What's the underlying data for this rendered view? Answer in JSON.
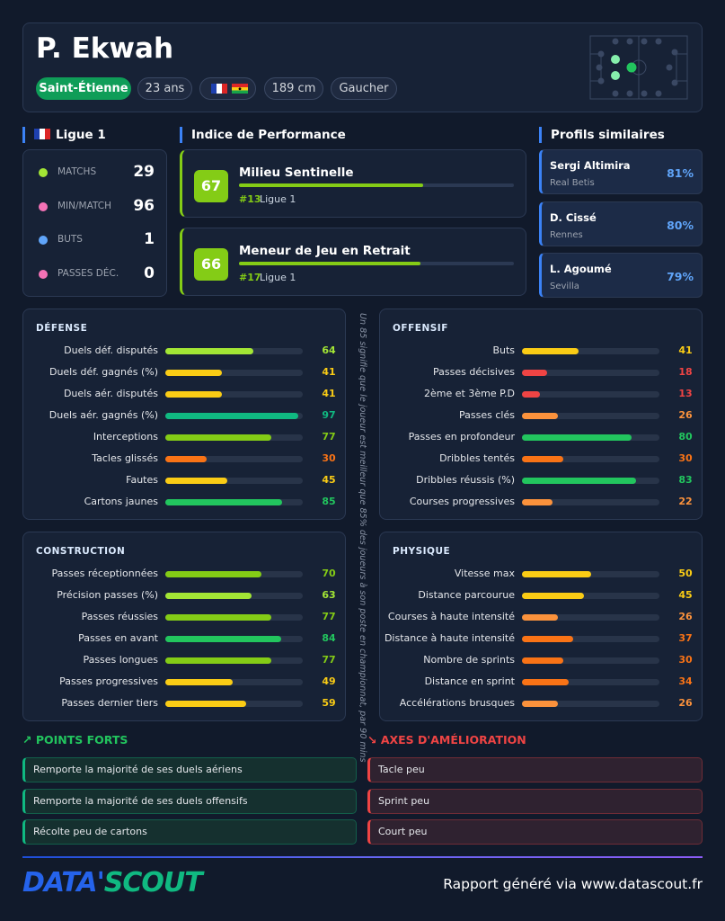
{
  "header": {
    "name": "P. Ekwah",
    "club": "Saint-Étienne",
    "age": "23 ans",
    "height": "189 cm",
    "foot": "Gaucher"
  },
  "league": {
    "name": "Ligue 1",
    "stats": [
      {
        "label": "MATCHS",
        "value": 29
      },
      {
        "label": "MIN/MATCH",
        "value": 96
      },
      {
        "label": "BUTS",
        "value": 1
      },
      {
        "label": "PASSES DÉC.",
        "value": 0
      }
    ]
  },
  "performance": {
    "title": "Indice de Performance",
    "items": [
      {
        "score": 67,
        "role": "Milieu Sentinelle",
        "rank": "#13",
        "league": "Ligue 1"
      },
      {
        "score": 66,
        "role": "Meneur de Jeu en Retrait",
        "rank": "#17",
        "league": "Ligue 1"
      }
    ]
  },
  "similar": {
    "title": "Profils similaires",
    "items": [
      {
        "name": "Sergi Altimira",
        "club": "Real Betis",
        "pct": "81%"
      },
      {
        "name": "D. Cissé",
        "club": "Rennes",
        "pct": "80%"
      },
      {
        "name": "L. Agoumé",
        "club": "Sevilla",
        "pct": "79%"
      }
    ]
  },
  "sections": [
    {
      "title": "DÉFENSE",
      "stats": [
        {
          "label": "Duels déf. disputés",
          "value": 64
        },
        {
          "label": "Duels déf. gagnés (%)",
          "value": 41
        },
        {
          "label": "Duels aér. disputés",
          "value": 41
        },
        {
          "label": "Duels aér. gagnés (%)",
          "value": 97
        },
        {
          "label": "Interceptions",
          "value": 77
        },
        {
          "label": "Tacles glissés",
          "value": 30
        },
        {
          "label": "Fautes",
          "value": 45
        },
        {
          "label": "Cartons jaunes",
          "value": 85
        }
      ]
    },
    {
      "title": "OFFENSIF",
      "stats": [
        {
          "label": "Buts",
          "value": 41
        },
        {
          "label": "Passes décisives",
          "value": 18
        },
        {
          "label": "2ème et 3ème P.D",
          "value": 13
        },
        {
          "label": "Passes clés",
          "value": 26
        },
        {
          "label": "Passes en profondeur",
          "value": 80
        },
        {
          "label": "Dribbles tentés",
          "value": 30
        },
        {
          "label": "Dribbles réussis (%)",
          "value": 83
        },
        {
          "label": "Courses progressives",
          "value": 22
        }
      ]
    },
    {
      "title": "CONSTRUCTION",
      "stats": [
        {
          "label": "Passes réceptionnées",
          "value": 70
        },
        {
          "label": "Précision passes (%)",
          "value": 63
        },
        {
          "label": "Passes réussies",
          "value": 77
        },
        {
          "label": "Passes en avant",
          "value": 84
        },
        {
          "label": "Passes longues",
          "value": 77
        },
        {
          "label": "Passes progressives",
          "value": 49
        },
        {
          "label": "Passes dernier tiers",
          "value": 59
        }
      ]
    },
    {
      "title": "PHYSIQUE",
      "stats": [
        {
          "label": "Vitesse max",
          "value": 50
        },
        {
          "label": "Distance parcourue",
          "value": 45
        },
        {
          "label": "Courses à haute intensité",
          "value": 26
        },
        {
          "label": "Distance à haute intensité",
          "value": 37
        },
        {
          "label": "Nombre de sprints",
          "value": 30
        },
        {
          "label": "Distance en sprint",
          "value": 34
        },
        {
          "label": "Accélérations brusques",
          "value": 26
        }
      ]
    }
  ],
  "note": "Un 85 signifie que le joueur est meilleur que 85% des joueurs à son poste en championnat, par 90 mins",
  "strengths": {
    "title": "POINTS FORTS",
    "items": [
      "Remporte la majorité de ses duels aériens",
      "Remporte la majorité de ses duels offensifs",
      "Récolte peu de cartons"
    ]
  },
  "improvements": {
    "title": "AXES D'AMÉLIORATION",
    "items": [
      "Tacle peu",
      "Sprint peu",
      "Court peu"
    ]
  },
  "footer": {
    "logo_a": "DATA'",
    "logo_b": "SCOUT",
    "text": "Rapport généré via www.datascout.fr"
  }
}
